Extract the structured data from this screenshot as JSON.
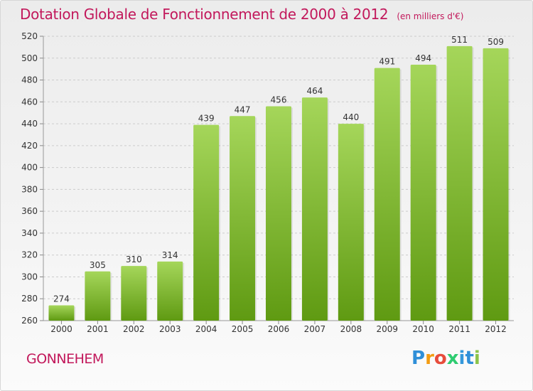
{
  "title": "Dotation Globale de Fonctionnement de 2000 à 2012",
  "subtitle": "(en milliers d'€)",
  "commune": "GONNEHEM",
  "brand": {
    "letters": [
      "P",
      "r",
      "o",
      "x",
      "i",
      "t",
      "i"
    ],
    "colors": [
      "#2f8fd8",
      "#f39c12",
      "#e74c3c",
      "#2ecc71",
      "#3498db",
      "#2f8fd8",
      "#8bc34a"
    ]
  },
  "colors": {
    "bar_top": "#a5d65a",
    "bar_bottom": "#5f9a12",
    "grid": "#cccccc",
    "text": "#333333",
    "accent": "#c2185b"
  },
  "chart_data": {
    "type": "bar",
    "categories": [
      "2000",
      "2001",
      "2002",
      "2003",
      "2004",
      "2005",
      "2006",
      "2007",
      "2008",
      "2009",
      "2010",
      "2011",
      "2012"
    ],
    "values": [
      274,
      305,
      310,
      314,
      439,
      447,
      456,
      464,
      440,
      491,
      494,
      511,
      509
    ],
    "title": "Dotation Globale de Fonctionnement de 2000 à 2012",
    "subtitle": "(en milliers d'€)",
    "xlabel": "",
    "ylabel": "",
    "ylim": [
      260,
      520
    ],
    "yticks": [
      260,
      280,
      300,
      320,
      340,
      360,
      380,
      400,
      420,
      440,
      460,
      480,
      500,
      520
    ],
    "grid": true,
    "legend": "none"
  }
}
